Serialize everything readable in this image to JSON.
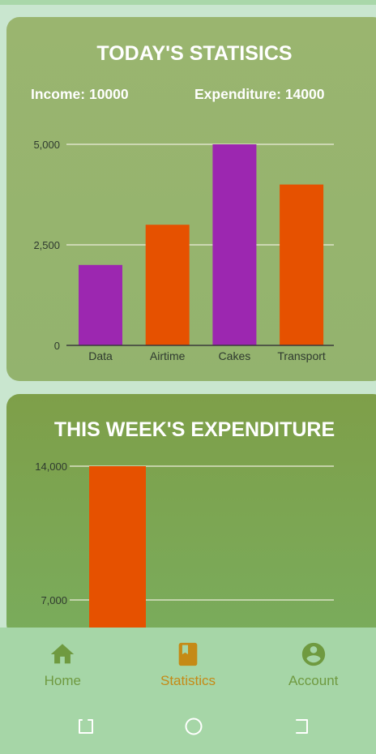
{
  "colors": {
    "purple": "#9c27b0",
    "orange": "#e65100",
    "nav_active": "#c58a16",
    "nav_inactive": "#6f9a40"
  },
  "today": {
    "title": "TODAY'S STATISICS",
    "income": "Income: 10000",
    "expenditure": "Expenditure: 14000"
  },
  "week": {
    "title": "THIS WEEK'S EXPENDITURE"
  },
  "nav": {
    "home": "Home",
    "statistics": "Statistics",
    "account": "Account",
    "active": "Statistics"
  },
  "chart_data": [
    {
      "type": "bar",
      "categories": [
        "Data",
        "Airtime",
        "Cakes",
        "Transport"
      ],
      "values": [
        2000,
        3000,
        5000,
        4000
      ],
      "bar_colors": [
        "#9c27b0",
        "#e65100",
        "#9c27b0",
        "#e65100"
      ],
      "yticks": [
        0,
        2500,
        5000
      ],
      "ytick_labels": [
        "0",
        "2,500",
        "5,000"
      ],
      "ylim": [
        0,
        5000
      ],
      "grid": true
    },
    {
      "type": "bar",
      "values": [
        14000
      ],
      "bar_colors": [
        "#e65100"
      ],
      "yticks": [
        7000,
        14000
      ],
      "ytick_labels": [
        "7,000",
        "14,000"
      ],
      "ylim": [
        0,
        14000
      ],
      "grid": true
    }
  ]
}
